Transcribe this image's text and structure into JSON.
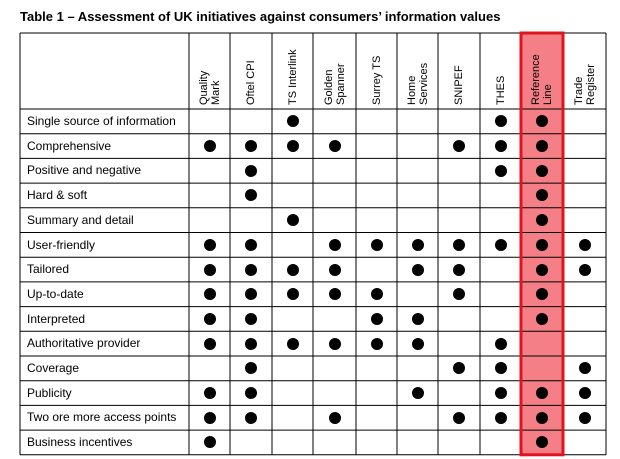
{
  "title": "Table 1 – Assessment of UK initiatives against consumers’ information values",
  "columns": [
    {
      "line1": "Quality",
      "line2": "Mark"
    },
    {
      "line1": "Oftel CPI",
      "line2": ""
    },
    {
      "line1": "TS Interlink",
      "line2": ""
    },
    {
      "line1": "Golden",
      "line2": "Spanner"
    },
    {
      "line1": "Surrey TS",
      "line2": ""
    },
    {
      "line1": "Home",
      "line2": "Services"
    },
    {
      "line1": "SNIPEF",
      "line2": ""
    },
    {
      "line1": "THES",
      "line2": ""
    },
    {
      "line1": "Reference",
      "line2": "Line"
    },
    {
      "line1": "Trade",
      "line2": "Register"
    }
  ],
  "highlight_column_index": 8,
  "highlight_fill": "#f47f87",
  "highlight_border": "#e0141e",
  "rows": [
    {
      "label": "Single source of information",
      "marks": [
        0,
        0,
        1,
        0,
        0,
        0,
        0,
        1,
        1,
        0
      ]
    },
    {
      "label": "Comprehensive",
      "marks": [
        1,
        1,
        1,
        1,
        0,
        0,
        1,
        1,
        1,
        0
      ]
    },
    {
      "label": "Positive and negative",
      "marks": [
        0,
        1,
        0,
        0,
        0,
        0,
        0,
        1,
        1,
        0
      ]
    },
    {
      "label": "Hard & soft",
      "marks": [
        0,
        1,
        0,
        0,
        0,
        0,
        0,
        0,
        1,
        0
      ]
    },
    {
      "label": "Summary and detail",
      "marks": [
        0,
        0,
        1,
        0,
        0,
        0,
        0,
        0,
        1,
        0
      ]
    },
    {
      "label": "User-friendly",
      "marks": [
        1,
        1,
        0,
        1,
        1,
        1,
        1,
        1,
        1,
        1
      ]
    },
    {
      "label": "Tailored",
      "marks": [
        1,
        1,
        1,
        1,
        0,
        1,
        1,
        0,
        1,
        1
      ]
    },
    {
      "label": "Up-to-date",
      "marks": [
        1,
        1,
        1,
        1,
        1,
        0,
        1,
        0,
        1,
        0
      ]
    },
    {
      "label": "Interpreted",
      "marks": [
        1,
        1,
        0,
        0,
        1,
        1,
        0,
        0,
        1,
        0
      ]
    },
    {
      "label": "Authoritative provider",
      "marks": [
        1,
        1,
        1,
        1,
        1,
        1,
        0,
        1,
        0,
        0
      ]
    },
    {
      "label": "Coverage",
      "marks": [
        0,
        1,
        0,
        0,
        0,
        0,
        1,
        1,
        0,
        1
      ]
    },
    {
      "label": "Publicity",
      "marks": [
        1,
        1,
        0,
        0,
        0,
        1,
        0,
        1,
        1,
        1
      ]
    },
    {
      "label": "Two ore more access points",
      "marks": [
        1,
        1,
        0,
        1,
        0,
        0,
        1,
        1,
        1,
        1
      ]
    },
    {
      "label": "Business incentives",
      "marks": [
        1,
        0,
        0,
        0,
        0,
        0,
        0,
        0,
        1,
        0
      ]
    }
  ]
}
